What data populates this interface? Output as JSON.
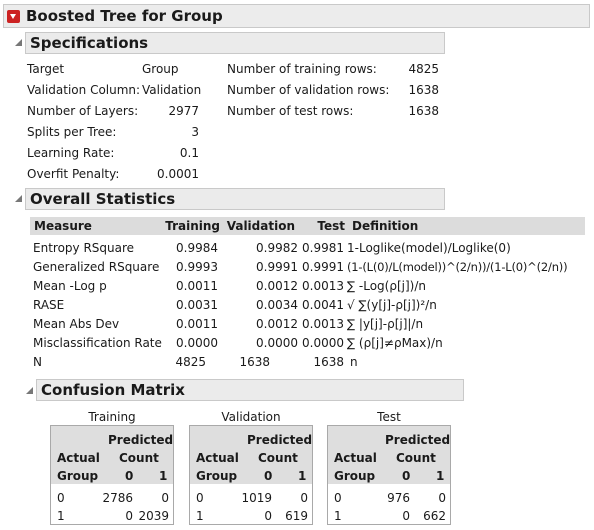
{
  "title": "Boosted Tree for Group",
  "specifications": {
    "header": "Specifications",
    "left": [
      {
        "label": "Target",
        "value": "Group"
      },
      {
        "label": "Validation Column:",
        "value": "Validation"
      },
      {
        "label": "Number of Layers:",
        "value": "2977"
      },
      {
        "label": "Splits per Tree:",
        "value": "3"
      },
      {
        "label": "Learning Rate:",
        "value": "0.1"
      },
      {
        "label": "Overfit Penalty:",
        "value": "0.0001"
      }
    ],
    "right": [
      {
        "label": "Number of training rows:",
        "value": "4825"
      },
      {
        "label": "Number of validation rows:",
        "value": "1638"
      },
      {
        "label": "Number of test rows:",
        "value": "1638"
      }
    ]
  },
  "overall": {
    "header": "Overall Statistics",
    "columns": [
      "Measure",
      "Training",
      "Validation",
      "Test",
      "Definition"
    ],
    "rows": [
      [
        "Entropy RSquare",
        "0.9984",
        "0.9982",
        "0.9981",
        "1-Loglike(model)/Loglike(0)"
      ],
      [
        "Generalized RSquare",
        "0.9993",
        "0.9991",
        "0.9991",
        "(1-(L(0)/L(model))^(2/n))/(1-L(0)^(2/n))"
      ],
      [
        "Mean -Log p",
        "0.0011",
        "0.0012",
        "0.0013",
        "∑ -Log(ρ[j])/n"
      ],
      [
        "RASE",
        "0.0031",
        "0.0034",
        "0.0041",
        "√ ∑(y[j]-ρ[j])²/n"
      ],
      [
        "Mean Abs Dev",
        "0.0011",
        "0.0012",
        "0.0013",
        "∑ |y[j]-ρ[j]|/n"
      ],
      [
        "Misclassification Rate",
        "0.0000",
        "0.0000",
        "0.0000",
        "∑ (ρ[j]≠ρMax)/n"
      ],
      [
        "N",
        "4825",
        "1638",
        "1638",
        "n"
      ]
    ]
  },
  "confusion": {
    "header": "Confusion Matrix",
    "actual_label": "Actual",
    "group_label": "Group",
    "predicted_label": "Predicted",
    "count_label": "Count",
    "col_labels": [
      "0",
      "1"
    ],
    "matrices": [
      {
        "title": "Training",
        "rows": [
          {
            "label": "0",
            "values": [
              "2786",
              "0"
            ]
          },
          {
            "label": "1",
            "values": [
              "0",
              "2039"
            ]
          }
        ]
      },
      {
        "title": "Validation",
        "rows": [
          {
            "label": "0",
            "values": [
              "1019",
              "0"
            ]
          },
          {
            "label": "1",
            "values": [
              "0",
              "619"
            ]
          }
        ]
      },
      {
        "title": "Test",
        "rows": [
          {
            "label": "0",
            "values": [
              "976",
              "0"
            ]
          },
          {
            "label": "1",
            "values": [
              "0",
              "662"
            ]
          }
        ]
      }
    ]
  },
  "colors": {
    "header_bg": "#ebebeb",
    "table_header_bg": "#dcdcdc",
    "red_menu": "#cc2222"
  },
  "icons": {
    "menu": "red-dropdown-icon",
    "collapse": "disclosure-triangle-icon"
  }
}
